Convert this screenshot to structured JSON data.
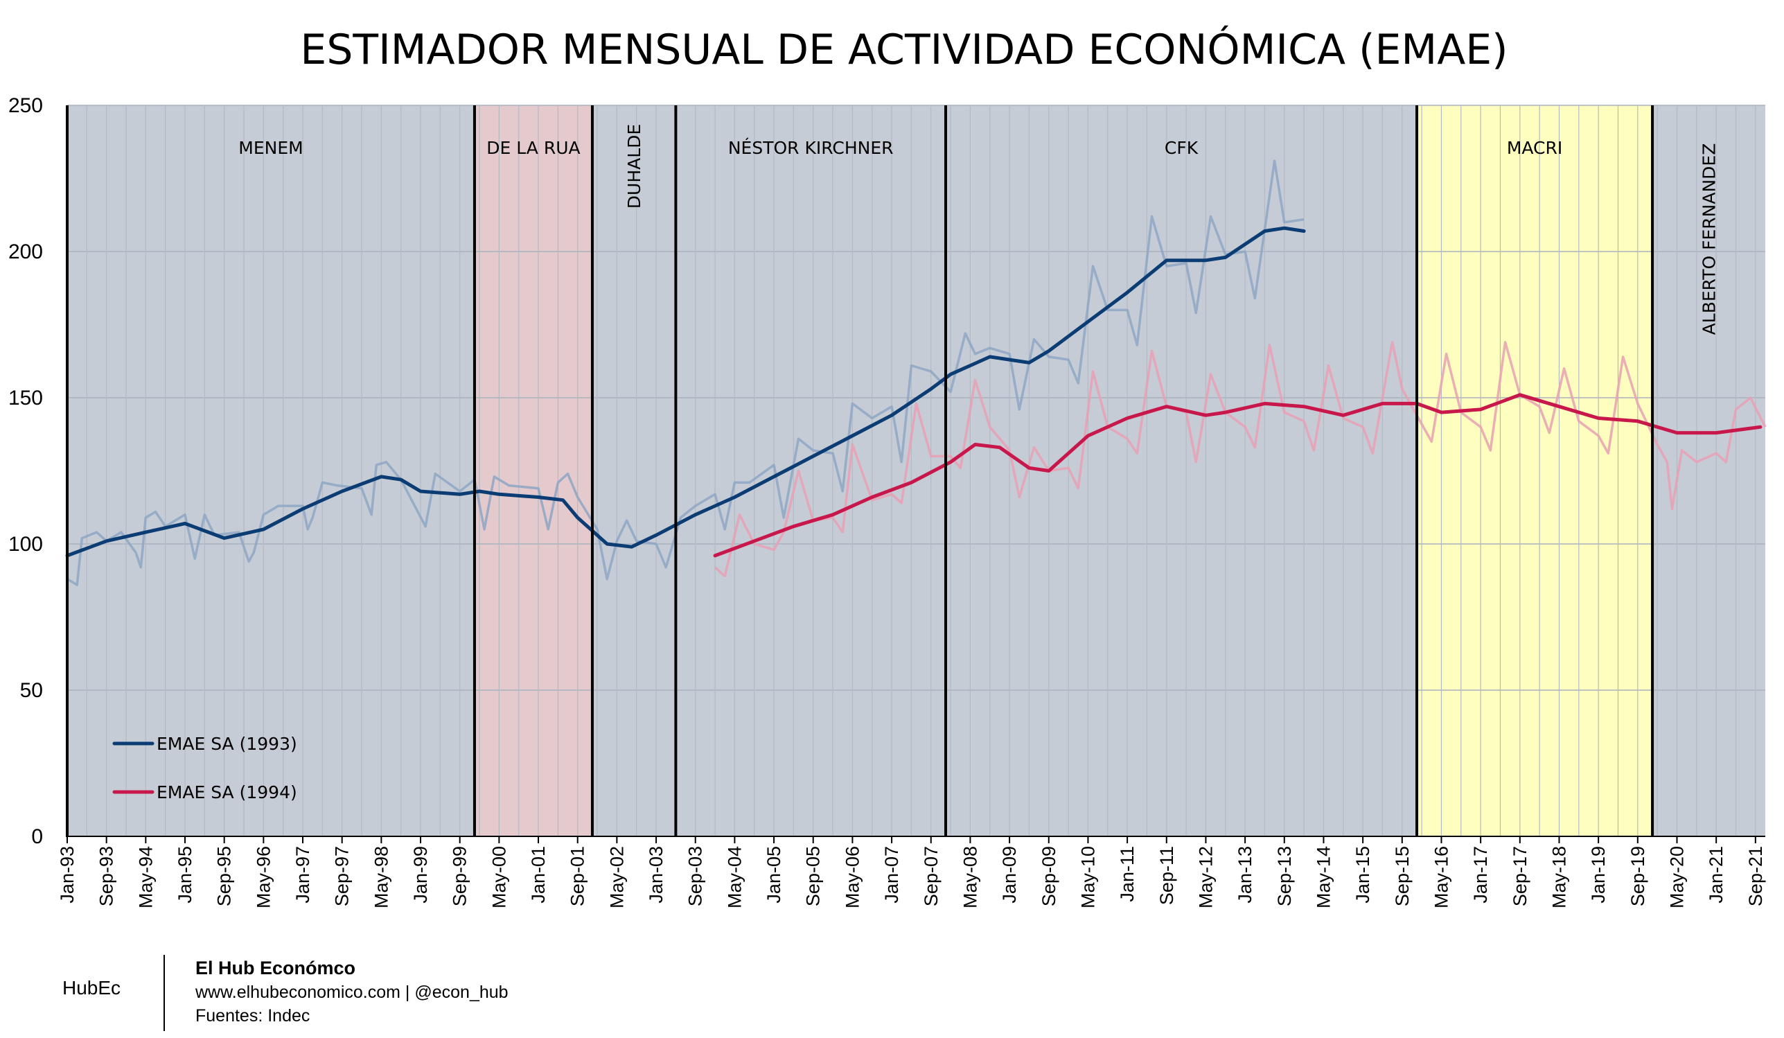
{
  "chart_data": {
    "type": "line",
    "title": "ESTIMADOR MENSUAL DE ACTIVIDAD ECONÓMICA (EMAE)",
    "ylim": [
      0,
      250
    ],
    "y_ticks": [
      "0",
      "50",
      "100",
      "150",
      "200",
      "250"
    ],
    "x_range": [
      "1993-01",
      "2021-11"
    ],
    "x_tick_labels": [
      "Jan-93",
      "Sep-93",
      "May-94",
      "Jan-95",
      "Sep-95",
      "May-96",
      "Jan-97",
      "Sep-97",
      "May-98",
      "Jan-99",
      "Sep-99",
      "May-00",
      "Jan-01",
      "Sep-01",
      "May-02",
      "Jan-03",
      "Sep-03",
      "May-04",
      "Jan-05",
      "Sep-05",
      "May-06",
      "Jan-07",
      "Sep-07",
      "May-08",
      "Jan-09",
      "Sep-09",
      "May-10",
      "Jan-11",
      "Sep-11",
      "May-12",
      "Jan-13",
      "Sep-13",
      "May-14",
      "Jan-15",
      "Sep-15",
      "May-16",
      "Jan-17",
      "Sep-17",
      "May-18",
      "Jan-19",
      "Sep-19",
      "May-20",
      "Jan-21",
      "Sep-21"
    ],
    "grid": true,
    "legend_position": "bottom-left",
    "periods": [
      {
        "label": "MENEM",
        "start": "1993-01",
        "end": "1999-12",
        "color": "#c5ccd6",
        "vertical": false
      },
      {
        "label": "DE LA RUA",
        "start": "1999-12",
        "end": "2001-12",
        "color": "#e5cacd",
        "vertical": false
      },
      {
        "label": "DUHALDE",
        "start": "2001-12",
        "end": "2003-05",
        "color": "#c5ccd6",
        "vertical": true
      },
      {
        "label": "NÉSTOR KIRCHNER",
        "start": "2003-05",
        "end": "2007-12",
        "color": "#c5ccd6",
        "vertical": false
      },
      {
        "label": "CFK",
        "start": "2007-12",
        "end": "2015-12",
        "color": "#c5ccd6",
        "vertical": false
      },
      {
        "label": "MACRI",
        "start": "2015-12",
        "end": "2019-12",
        "color": "#fefebe",
        "vertical": false
      },
      {
        "label": "ALBERTO FERNANDEZ",
        "start": "2019-12",
        "end": "2021-11",
        "color": "#c5ccd6",
        "vertical": true
      }
    ],
    "series": [
      {
        "name": "EMAE SA (1993)",
        "color": "#0b3c73",
        "raw_color": "#8ea6c3",
        "trend": [
          [
            "1993-01",
            96
          ],
          [
            "1993-09",
            101
          ],
          [
            "1994-05",
            104
          ],
          [
            "1995-01",
            107
          ],
          [
            "1995-09",
            102
          ],
          [
            "1996-05",
            105
          ],
          [
            "1997-01",
            112
          ],
          [
            "1997-09",
            118
          ],
          [
            "1998-05",
            123
          ],
          [
            "1998-09",
            122
          ],
          [
            "1999-01",
            118
          ],
          [
            "1999-09",
            117
          ],
          [
            "2000-01",
            118
          ],
          [
            "2000-05",
            117
          ],
          [
            "2001-01",
            116
          ],
          [
            "2001-06",
            115
          ],
          [
            "2001-09",
            109
          ],
          [
            "2002-03",
            100
          ],
          [
            "2002-08",
            99
          ],
          [
            "2003-01",
            103
          ],
          [
            "2003-09",
            110
          ],
          [
            "2004-05",
            116
          ],
          [
            "2005-01",
            123
          ],
          [
            "2005-09",
            130
          ],
          [
            "2006-05",
            137
          ],
          [
            "2007-01",
            144
          ],
          [
            "2007-09",
            153
          ],
          [
            "2008-01",
            158
          ],
          [
            "2008-05",
            161
          ],
          [
            "2008-09",
            164
          ],
          [
            "2009-05",
            162
          ],
          [
            "2009-09",
            166
          ],
          [
            "2010-05",
            176
          ],
          [
            "2011-01",
            186
          ],
          [
            "2011-09",
            197
          ],
          [
            "2012-05",
            197
          ],
          [
            "2012-09",
            198
          ],
          [
            "2013-05",
            207
          ],
          [
            "2013-09",
            208
          ],
          [
            "2014-01",
            207
          ]
        ],
        "raw": [
          [
            "1993-01",
            88
          ],
          [
            "1993-03",
            86
          ],
          [
            "1993-04",
            102
          ],
          [
            "1993-07",
            104
          ],
          [
            "1993-09",
            101
          ],
          [
            "1993-12",
            104
          ],
          [
            "1994-03",
            97
          ],
          [
            "1994-04",
            92
          ],
          [
            "1994-05",
            109
          ],
          [
            "1994-07",
            111
          ],
          [
            "1994-09",
            106
          ],
          [
            "1995-01",
            110
          ],
          [
            "1995-03",
            95
          ],
          [
            "1995-05",
            110
          ],
          [
            "1995-07",
            103
          ],
          [
            "1995-12",
            104
          ],
          [
            "1996-02",
            94
          ],
          [
            "1996-03",
            97
          ],
          [
            "1996-05",
            110
          ],
          [
            "1996-08",
            113
          ],
          [
            "1997-01",
            113
          ],
          [
            "1997-02",
            105
          ],
          [
            "1997-03",
            109
          ],
          [
            "1997-05",
            121
          ],
          [
            "1997-08",
            120
          ],
          [
            "1998-01",
            119
          ],
          [
            "1998-03",
            110
          ],
          [
            "1998-04",
            127
          ],
          [
            "1998-06",
            128
          ],
          [
            "1998-09",
            122
          ],
          [
            "1999-02",
            106
          ],
          [
            "1999-04",
            124
          ],
          [
            "1999-09",
            118
          ],
          [
            "1999-12",
            122
          ],
          [
            "2000-02",
            105
          ],
          [
            "2000-04",
            123
          ],
          [
            "2000-07",
            120
          ],
          [
            "2001-01",
            119
          ],
          [
            "2001-03",
            105
          ],
          [
            "2001-05",
            121
          ],
          [
            "2001-07",
            124
          ],
          [
            "2001-09",
            116
          ],
          [
            "2002-01",
            105
          ],
          [
            "2002-03",
            88
          ],
          [
            "2002-05",
            101
          ],
          [
            "2002-07",
            108
          ],
          [
            "2002-09",
            101
          ],
          [
            "2003-01",
            100
          ],
          [
            "2003-03",
            92
          ],
          [
            "2003-06",
            109
          ],
          [
            "2003-09",
            113
          ],
          [
            "2004-01",
            117
          ],
          [
            "2004-03",
            105
          ],
          [
            "2004-05",
            121
          ],
          [
            "2004-08",
            121
          ],
          [
            "2005-01",
            127
          ],
          [
            "2005-03",
            109
          ],
          [
            "2005-06",
            136
          ],
          [
            "2005-09",
            132
          ],
          [
            "2006-01",
            131
          ],
          [
            "2006-03",
            118
          ],
          [
            "2006-05",
            148
          ],
          [
            "2006-09",
            143
          ],
          [
            "2007-01",
            147
          ],
          [
            "2007-03",
            128
          ],
          [
            "2007-05",
            161
          ],
          [
            "2007-09",
            159
          ],
          [
            "2008-01",
            152
          ],
          [
            "2008-04",
            172
          ],
          [
            "2008-06",
            165
          ],
          [
            "2008-09",
            167
          ],
          [
            "2009-01",
            165
          ],
          [
            "2009-03",
            146
          ],
          [
            "2009-06",
            170
          ],
          [
            "2009-09",
            164
          ],
          [
            "2010-01",
            163
          ],
          [
            "2010-03",
            155
          ],
          [
            "2010-06",
            195
          ],
          [
            "2010-09",
            180
          ],
          [
            "2011-01",
            180
          ],
          [
            "2011-03",
            168
          ],
          [
            "2011-06",
            212
          ],
          [
            "2011-09",
            195
          ],
          [
            "2012-01",
            196
          ],
          [
            "2012-03",
            179
          ],
          [
            "2012-06",
            212
          ],
          [
            "2012-09",
            199
          ],
          [
            "2013-01",
            200
          ],
          [
            "2013-03",
            184
          ],
          [
            "2013-07",
            231
          ],
          [
            "2013-09",
            210
          ],
          [
            "2014-01",
            211
          ]
        ]
      },
      {
        "name": "EMAE SA (1994)",
        "color": "#c8174a",
        "raw_color": "#e8a0b4",
        "trend": [
          [
            "2004-01",
            96
          ],
          [
            "2004-09",
            101
          ],
          [
            "2005-05",
            106
          ],
          [
            "2006-01",
            110
          ],
          [
            "2006-09",
            116
          ],
          [
            "2007-05",
            121
          ],
          [
            "2008-01",
            128
          ],
          [
            "2008-06",
            134
          ],
          [
            "2008-11",
            133
          ],
          [
            "2009-05",
            126
          ],
          [
            "2009-09",
            125
          ],
          [
            "2010-05",
            137
          ],
          [
            "2011-01",
            143
          ],
          [
            "2011-09",
            147
          ],
          [
            "2012-05",
            144
          ],
          [
            "2012-09",
            145
          ],
          [
            "2013-05",
            148
          ],
          [
            "2014-01",
            147
          ],
          [
            "2014-09",
            144
          ],
          [
            "2015-05",
            148
          ],
          [
            "2015-12",
            148
          ],
          [
            "2016-05",
            145
          ],
          [
            "2017-01",
            146
          ],
          [
            "2017-09",
            151
          ],
          [
            "2018-05",
            147
          ],
          [
            "2019-01",
            143
          ],
          [
            "2019-09",
            142
          ],
          [
            "2020-05",
            138
          ],
          [
            "2021-01",
            138
          ],
          [
            "2021-10",
            140
          ]
        ],
        "raw": [
          [
            "2004-01",
            92
          ],
          [
            "2004-03",
            89
          ],
          [
            "2004-06",
            110
          ],
          [
            "2004-09",
            100
          ],
          [
            "2005-01",
            98
          ],
          [
            "2005-03",
            104
          ],
          [
            "2005-06",
            125
          ],
          [
            "2005-09",
            108
          ],
          [
            "2006-01",
            109
          ],
          [
            "2006-03",
            104
          ],
          [
            "2006-05",
            134
          ],
          [
            "2006-09",
            115
          ],
          [
            "2007-01",
            117
          ],
          [
            "2007-03",
            114
          ],
          [
            "2007-06",
            148
          ],
          [
            "2007-09",
            130
          ],
          [
            "2008-01",
            130
          ],
          [
            "2008-03",
            126
          ],
          [
            "2008-06",
            156
          ],
          [
            "2008-09",
            140
          ],
          [
            "2009-01",
            132
          ],
          [
            "2009-03",
            116
          ],
          [
            "2009-06",
            133
          ],
          [
            "2009-09",
            125
          ],
          [
            "2010-01",
            126
          ],
          [
            "2010-03",
            119
          ],
          [
            "2010-06",
            159
          ],
          [
            "2010-09",
            140
          ],
          [
            "2011-01",
            136
          ],
          [
            "2011-03",
            131
          ],
          [
            "2011-06",
            166
          ],
          [
            "2011-09",
            147
          ],
          [
            "2012-01",
            145
          ],
          [
            "2012-03",
            128
          ],
          [
            "2012-06",
            158
          ],
          [
            "2012-09",
            145
          ],
          [
            "2013-01",
            140
          ],
          [
            "2013-03",
            133
          ],
          [
            "2013-06",
            168
          ],
          [
            "2013-09",
            145
          ],
          [
            "2014-01",
            142
          ],
          [
            "2014-03",
            132
          ],
          [
            "2014-06",
            161
          ],
          [
            "2014-09",
            143
          ],
          [
            "2015-01",
            140
          ],
          [
            "2015-03",
            131
          ],
          [
            "2015-07",
            169
          ],
          [
            "2015-09",
            153
          ],
          [
            "2016-01",
            141
          ],
          [
            "2016-03",
            135
          ],
          [
            "2016-06",
            165
          ],
          [
            "2016-09",
            145
          ],
          [
            "2017-01",
            140
          ],
          [
            "2017-03",
            132
          ],
          [
            "2017-06",
            169
          ],
          [
            "2017-09",
            151
          ],
          [
            "2018-01",
            147
          ],
          [
            "2018-03",
            138
          ],
          [
            "2018-06",
            160
          ],
          [
            "2018-09",
            142
          ],
          [
            "2019-01",
            137
          ],
          [
            "2019-03",
            131
          ],
          [
            "2019-06",
            164
          ],
          [
            "2019-09",
            148
          ],
          [
            "2020-01",
            134
          ],
          [
            "2020-03",
            128
          ],
          [
            "2020-04",
            112
          ],
          [
            "2020-06",
            132
          ],
          [
            "2020-09",
            128
          ],
          [
            "2021-01",
            131
          ],
          [
            "2021-03",
            128
          ],
          [
            "2021-05",
            146
          ],
          [
            "2021-08",
            150
          ],
          [
            "2021-11",
            140
          ]
        ]
      }
    ]
  },
  "footer": {
    "brand": "HubEc",
    "org": "El Hub Económco",
    "web": "www.elhubeconomico.com | @econ_hub",
    "source": "Fuentes: Indec"
  }
}
